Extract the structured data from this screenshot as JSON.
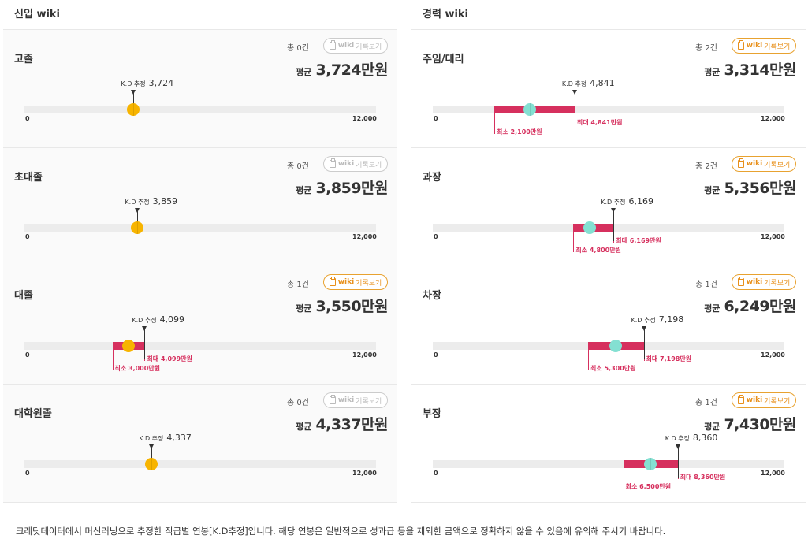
{
  "sections": [
    {
      "title": "신입 wiki",
      "cards": [
        {
          "name": "고졸",
          "count": "총 0건",
          "wiki_active": false,
          "avg_label": "평균",
          "avg": "3,724만원",
          "kd_label": "K.D 추정",
          "kd": "3,724",
          "kd_value": 3724,
          "min": null,
          "max": null
        },
        {
          "name": "초대졸",
          "count": "총 0건",
          "wiki_active": false,
          "avg_label": "평균",
          "avg": "3,859만원",
          "kd_label": "K.D 추정",
          "kd": "3,859",
          "kd_value": 3859,
          "min": null,
          "max": null
        },
        {
          "name": "대졸",
          "count": "총 1건",
          "wiki_active": true,
          "avg_label": "평균",
          "avg": "3,550만원",
          "kd_label": "K.D 추정",
          "kd": "4,099",
          "kd_value": 4099,
          "min": 3000,
          "max": 4099,
          "min_label": "최소 3,000만원",
          "max_label": "최대 4,099만원",
          "mid": 3550
        },
        {
          "name": "대학원졸",
          "count": "총 0건",
          "wiki_active": false,
          "avg_label": "평균",
          "avg": "4,337만원",
          "kd_label": "K.D 추정",
          "kd": "4,337",
          "kd_value": 4337,
          "min": null,
          "max": null
        }
      ]
    },
    {
      "title": "경력 wiki",
      "cards": [
        {
          "name": "주임/대리",
          "count": "총 2건",
          "wiki_active": true,
          "avg_label": "평균",
          "avg": "3,314만원",
          "kd_label": "K.D 추정",
          "kd": "4,841",
          "kd_value": 4841,
          "min": 2100,
          "max": 4841,
          "min_label": "최소 2,100만원",
          "max_label": "최대 4,841만원",
          "mid": 3314
        },
        {
          "name": "과장",
          "count": "총 2건",
          "wiki_active": true,
          "avg_label": "평균",
          "avg": "5,356만원",
          "kd_label": "K.D 추정",
          "kd": "6,169",
          "kd_value": 6169,
          "min": 4800,
          "max": 6169,
          "min_label": "최소 4,800만원",
          "max_label": "최대 6,169만원",
          "mid": 5356
        },
        {
          "name": "차장",
          "count": "총 1건",
          "wiki_active": true,
          "avg_label": "평균",
          "avg": "6,249만원",
          "kd_label": "K.D 추정",
          "kd": "7,198",
          "kd_value": 7198,
          "min": 5300,
          "max": 7198,
          "min_label": "최소 5,300만원",
          "max_label": "최대 7,198만원",
          "mid": 6249
        },
        {
          "name": "부장",
          "count": "총 1건",
          "wiki_active": true,
          "avg_label": "평균",
          "avg": "7,430만원",
          "kd_label": "K.D 추정",
          "kd": "8,360",
          "kd_value": 8360,
          "min": 6500,
          "max": 8360,
          "min_label": "최소 6,500만원",
          "max_label": "최대 8,360만원",
          "mid": 7430
        }
      ]
    }
  ],
  "wiki_button": {
    "strong": "wiki",
    "rest": "기록보기"
  },
  "scale": {
    "min": 0,
    "max": 12000,
    "min_label": "0",
    "max_label": "12,000"
  },
  "colors": {
    "range": "#d6305e",
    "dot_new": "#f7b400",
    "dot_exp": "#84e0d2",
    "wiki_active": "#e8901b"
  },
  "footer": "크레딧데이터에서 머신러닝으로 추정한 직급별 연봉[K.D추정]입니다. 해당 연봉은 일반적으로 성과급 등을 제외한 금액으로 정확하지 않을 수 있음에 유의해 주시기 바랍니다."
}
